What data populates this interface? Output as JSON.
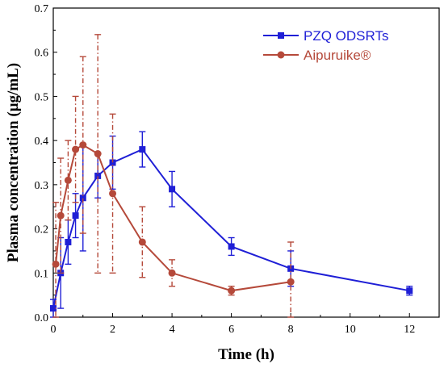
{
  "chart_data": {
    "type": "line",
    "xlabel": "Time (h)",
    "ylabel": "Plasma concentration (μg/mL)",
    "xlim": [
      0,
      13
    ],
    "ylim": [
      0,
      0.7
    ],
    "xticks": [
      0,
      2,
      4,
      6,
      8,
      10,
      12
    ],
    "yticks": [
      0.0,
      0.1,
      0.2,
      0.3,
      0.4,
      0.5,
      0.6,
      0.7
    ],
    "grid": false,
    "legend_position": "top-right",
    "series": [
      {
        "name": "PZQ ODSRTs",
        "color": "#1f1fd6",
        "marker": "square",
        "error_bar_style": "solid",
        "x": [
          0,
          0.25,
          0.5,
          0.75,
          1,
          1.5,
          2,
          3,
          4,
          6,
          8,
          12
        ],
        "y": [
          0.02,
          0.1,
          0.17,
          0.23,
          0.27,
          0.32,
          0.35,
          0.38,
          0.29,
          0.16,
          0.11,
          0.06
        ],
        "error": [
          0.02,
          0.08,
          0.05,
          0.05,
          0.12,
          0.05,
          0.06,
          0.04,
          0.04,
          0.02,
          0.04,
          0.01
        ]
      },
      {
        "name": "Aipuruike®",
        "color": "#b5493a",
        "marker": "circle",
        "error_bar_style": "dash-dot",
        "x": [
          0.083,
          0.25,
          0.5,
          0.75,
          1,
          1.5,
          2,
          3,
          4,
          6,
          8
        ],
        "y": [
          0.12,
          0.23,
          0.31,
          0.38,
          0.39,
          0.37,
          0.28,
          0.17,
          0.1,
          0.06,
          0.08
        ],
        "error": [
          0.14,
          0.13,
          0.09,
          0.12,
          0.2,
          0.27,
          0.18,
          0.08,
          0.03,
          0.01,
          0.09
        ]
      }
    ]
  }
}
